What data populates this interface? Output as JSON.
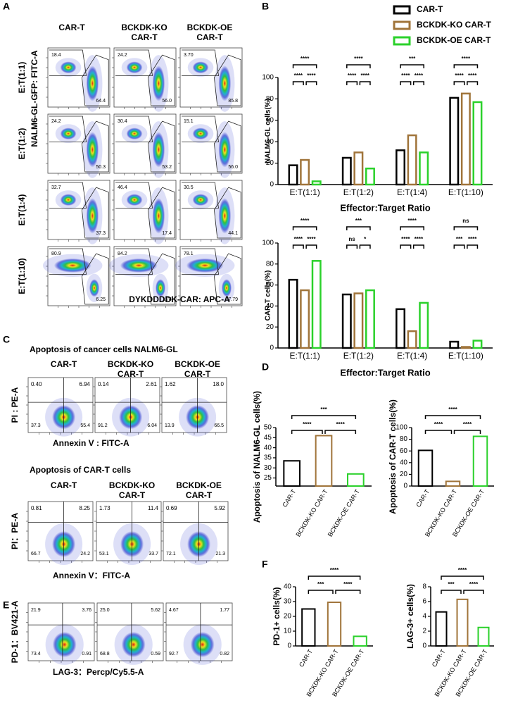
{
  "panel_labels": [
    "A",
    "B",
    "C",
    "D",
    "E",
    "F"
  ],
  "flow": [
    {
      "columns": [
        [
          "CAR-T"
        ],
        [
          "BCKDK-KO",
          "CAR-T"
        ],
        [
          "BCKDK-OE",
          "CAR-T"
        ]
      ],
      "ylabel": "NALM6-GL-GFP: FITC-A",
      "xlabel": "DYKDDDDK-CAR: APC-A",
      "rows": [
        {
          "label": "E:T(1:1)",
          "gates": [
            [
              "18.4",
              "64.4"
            ],
            [
              "24.2",
              "56.0"
            ],
            [
              "3.70",
              "85.8"
            ]
          ]
        },
        {
          "label": "E:T(1:2)",
          "gates": [
            [
              "24.2",
              "50.3"
            ],
            [
              "30.4",
              "53.2"
            ],
            [
              "15.1",
              "56.0"
            ]
          ]
        },
        {
          "label": "E:T(1:4)",
          "gates": [
            [
              "32.7",
              "37.3"
            ],
            [
              "46.4",
              "17.4"
            ],
            [
              "30.5",
              "44.1"
            ]
          ]
        },
        {
          "label": "E:T(1:10)",
          "gates": [
            [
              "80.9",
              "6.25"
            ],
            [
              "84.2",
              "1.74"
            ],
            [
              "78.1",
              "7.79"
            ]
          ]
        }
      ]
    },
    {
      "title": "Apoptosis of cancer cells NALM6-GL",
      "columns": [
        [
          "CAR-T"
        ],
        [
          "BCKDK-KO",
          "CAR-T"
        ],
        [
          "BCKDK-OE",
          "CAR-T"
        ]
      ],
      "ylabel": "PI : PE-A",
      "xlabel": "Annexin V : FITC-A",
      "quads": [
        [
          "0.40",
          "6.94",
          "37.3",
          "55.4"
        ],
        [
          "0.14",
          "2.61",
          "91.2",
          "6.04"
        ],
        [
          "1.62",
          "18.0",
          "13.9",
          "66.5"
        ]
      ]
    },
    {
      "title": "Apoptosis of CAR-T cells",
      "columns": [
        [
          "CAR-T"
        ],
        [
          "BCKDK-KO",
          "CAR-T"
        ],
        [
          "BCKDK-OE",
          "CAR-T"
        ]
      ],
      "ylabel": "PI：PE-A",
      "xlabel": "Annexin V：FITC-A",
      "quads": [
        [
          "0.81",
          "8.25",
          "66.7",
          "24.2"
        ],
        [
          "1.73",
          "11.4",
          "53.1",
          "33.7"
        ],
        [
          "0.69",
          "5.92",
          "72.1",
          "21.3"
        ]
      ]
    },
    {
      "ylabel": "PD-1：BV421-A",
      "xlabel": "LAG-3：Percp/Cy5.5-A",
      "quads": [
        [
          "21.9",
          "3.76",
          "73.4",
          "0.91"
        ],
        [
          "25.0",
          "5.62",
          "68.8",
          "0.59"
        ],
        [
          "4.67",
          "1.77",
          "92.7",
          "0.82"
        ]
      ]
    }
  ],
  "chart_data": [
    {
      "type": "grouped-bar",
      "ylabel": "NALM6-GL cells(%)",
      "xlabel": "Effector:Target Ratio",
      "legend": "top-right",
      "categories": [
        "E:T(1:1)",
        "E:T(1:2)",
        "E:T(1:4)",
        "E:T(1:10)"
      ],
      "series": [
        {
          "name": "CAR-T",
          "color": "#000000",
          "values": [
            18,
            25,
            32,
            81
          ]
        },
        {
          "name": "BCKDK-KO CAR-T",
          "color": "#a0743a",
          "values": [
            23,
            30,
            46,
            85
          ]
        },
        {
          "name": "BCKDK-OE CAR-T",
          "color": "#2bd12b",
          "values": [
            3,
            15,
            30,
            77
          ]
        }
      ],
      "ylim": [
        0,
        100
      ],
      "yticks": [
        0,
        20,
        40,
        60,
        80,
        100
      ],
      "significance": [
        [
          "****",
          "****",
          "****"
        ],
        [
          "****",
          "****",
          "****"
        ],
        [
          "***",
          "****",
          "****"
        ],
        [
          "****",
          "****",
          "****"
        ]
      ]
    },
    {
      "type": "grouped-bar",
      "ylabel": "CAR-T cells(%)",
      "xlabel": "Effector:Target Ratio",
      "categories": [
        "E:T(1:1)",
        "E:T(1:2)",
        "E:T(1:4)",
        "E:T(1:10)"
      ],
      "series": [
        {
          "color": "#000000",
          "values": [
            65,
            51,
            37,
            6
          ]
        },
        {
          "color": "#a0743a",
          "values": [
            55,
            52,
            16,
            1
          ]
        },
        {
          "color": "#2bd12b",
          "values": [
            83,
            55,
            43,
            7
          ]
        }
      ],
      "ylim": [
        0,
        100
      ],
      "yticks": [
        0,
        20,
        40,
        60,
        80,
        100
      ],
      "significance": [
        [
          "****",
          "****",
          "****"
        ],
        [
          "***",
          "ns",
          "*"
        ],
        [
          "****",
          "****",
          "****"
        ],
        [
          "ns",
          "***",
          "****"
        ]
      ]
    },
    {
      "type": "bar",
      "ylabel": "Apoptosis of NALM6-GL cells(%)",
      "categories": [
        "CAR-T",
        "BCKDK-KO CAR-T",
        "BCKDK-OE CAR-T"
      ],
      "values": [
        33.5,
        46,
        27
      ],
      "colors": [
        "#000000",
        "#a0743a",
        "#2bd12b"
      ],
      "ylim": [
        21,
        50
      ],
      "yticks": [
        25,
        30,
        35,
        40,
        45,
        50
      ],
      "significance": [
        "***",
        "****",
        "****"
      ]
    },
    {
      "type": "bar",
      "ylabel": "Apoptosis of CAR-T cells(%)",
      "categories": [
        "CAR-T",
        "BCKDK-KO CAR-T",
        "BCKDK-OE CAR-T"
      ],
      "values": [
        61,
        8,
        85
      ],
      "colors": [
        "#000000",
        "#a0743a",
        "#2bd12b"
      ],
      "ylim": [
        0,
        100
      ],
      "yticks": [
        0,
        20,
        40,
        60,
        80,
        100
      ],
      "significance": [
        "****",
        "****",
        "****"
      ]
    },
    {
      "type": "bar",
      "ylabel": "PD-1+ cells(%)",
      "categories": [
        "CAR-T",
        "BCKDK-KO CAR-T",
        "BCKDK-OE CAR-T"
      ],
      "values": [
        25,
        29.5,
        6.5
      ],
      "colors": [
        "#000000",
        "#a0743a",
        "#2bd12b"
      ],
      "ylim": [
        0,
        40
      ],
      "yticks": [
        0,
        10,
        20,
        30,
        40
      ],
      "significance": [
        "****",
        "***",
        "****"
      ]
    },
    {
      "type": "bar",
      "ylabel": "LAG-3+ cells(%)",
      "categories": [
        "CAR-T",
        "BCKDK-KO CAR-T",
        "BCKDK-OE CAR-T"
      ],
      "values": [
        4.6,
        6.3,
        2.5
      ],
      "colors": [
        "#000000",
        "#a0743a",
        "#2bd12b"
      ],
      "ylim": [
        0,
        8
      ],
      "yticks": [
        0,
        2,
        4,
        6,
        8
      ],
      "significance": [
        "****",
        "***",
        "****"
      ]
    }
  ]
}
